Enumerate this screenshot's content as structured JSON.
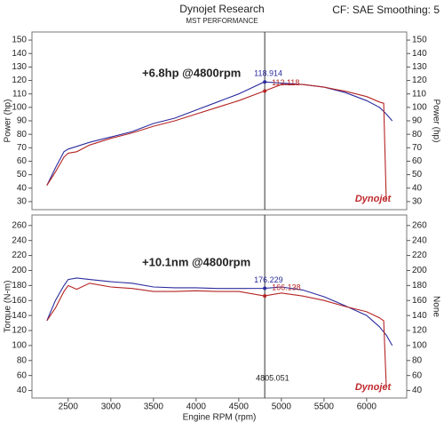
{
  "header": {
    "title": "Dynojet Research",
    "subtitle": "MST PERFORMANCE",
    "right_text": "CF: SAE Smoothing: 5"
  },
  "chart_data": [
    {
      "type": "line",
      "ylabel": "Power (hp)",
      "y2label": "Power (hp)",
      "xlim": [
        2075,
        6470
      ],
      "ylim": [
        24,
        156
      ],
      "yticks": [
        30,
        40,
        50,
        60,
        70,
        80,
        90,
        100,
        110,
        120,
        130,
        140,
        150
      ],
      "grid": false,
      "annotation": "+6.8hp @4800rpm",
      "logo": "Dynojet",
      "x": [
        2250,
        2350,
        2450,
        2500,
        2600,
        2750,
        3000,
        3250,
        3500,
        3750,
        4000,
        4250,
        4500,
        4800,
        5000,
        5250,
        5500,
        5750,
        6000,
        6150,
        6200,
        6230,
        6300
      ],
      "series": [
        {
          "color": "#2b2b9e",
          "values": [
            42,
            55,
            67,
            69,
            71,
            74,
            78,
            82,
            88,
            92,
            98,
            104,
            110,
            118.9,
            118,
            117,
            115,
            111,
            105,
            100,
            97,
            95,
            90
          ]
        },
        {
          "color": "#b52424",
          "values": [
            42,
            52,
            63,
            66,
            67,
            72,
            77,
            81,
            86,
            90,
            95,
            100,
            105,
            112.1,
            117,
            117,
            115,
            112,
            108,
            104,
            103,
            30,
            null
          ]
        }
      ],
      "cursor": {
        "x": 4805.051,
        "values": [
          118.914,
          112.118
        ]
      }
    },
    {
      "type": "line",
      "ylabel": "Torque (N-m)",
      "y2label": "None",
      "xlabel": "Engine RPM (rpm)",
      "xlim": [
        2075,
        6470
      ],
      "xticks": [
        2500,
        3000,
        3500,
        4000,
        4500,
        5000,
        5500,
        6000
      ],
      "ylim": [
        30,
        274
      ],
      "yticks": [
        40,
        60,
        80,
        100,
        120,
        140,
        160,
        180,
        200,
        220,
        240,
        260
      ],
      "grid": false,
      "annotation": "+10.1nm @4800rpm",
      "logo": "Dynojet",
      "x": [
        2250,
        2350,
        2450,
        2500,
        2600,
        2750,
        3000,
        3250,
        3500,
        3750,
        4000,
        4250,
        4500,
        4800,
        5000,
        5250,
        5500,
        5750,
        6000,
        6150,
        6200,
        6230,
        6300
      ],
      "series": [
        {
          "color": "#2b2b9e",
          "values": [
            133,
            160,
            180,
            188,
            190,
            188,
            185,
            183,
            178,
            177,
            177,
            176,
            176,
            176.2,
            178,
            174,
            165,
            153,
            140,
            125,
            118,
            114,
            100
          ]
        },
        {
          "color": "#b52424",
          "values": [
            133,
            150,
            172,
            180,
            175,
            183,
            178,
            176,
            172,
            172,
            173,
            172,
            172,
            166.1,
            170,
            166,
            160,
            152,
            145,
            137,
            133,
            45,
            null
          ]
        }
      ],
      "cursor": {
        "x": 4805.051,
        "values": [
          176.229,
          166.138
        ]
      }
    }
  ]
}
